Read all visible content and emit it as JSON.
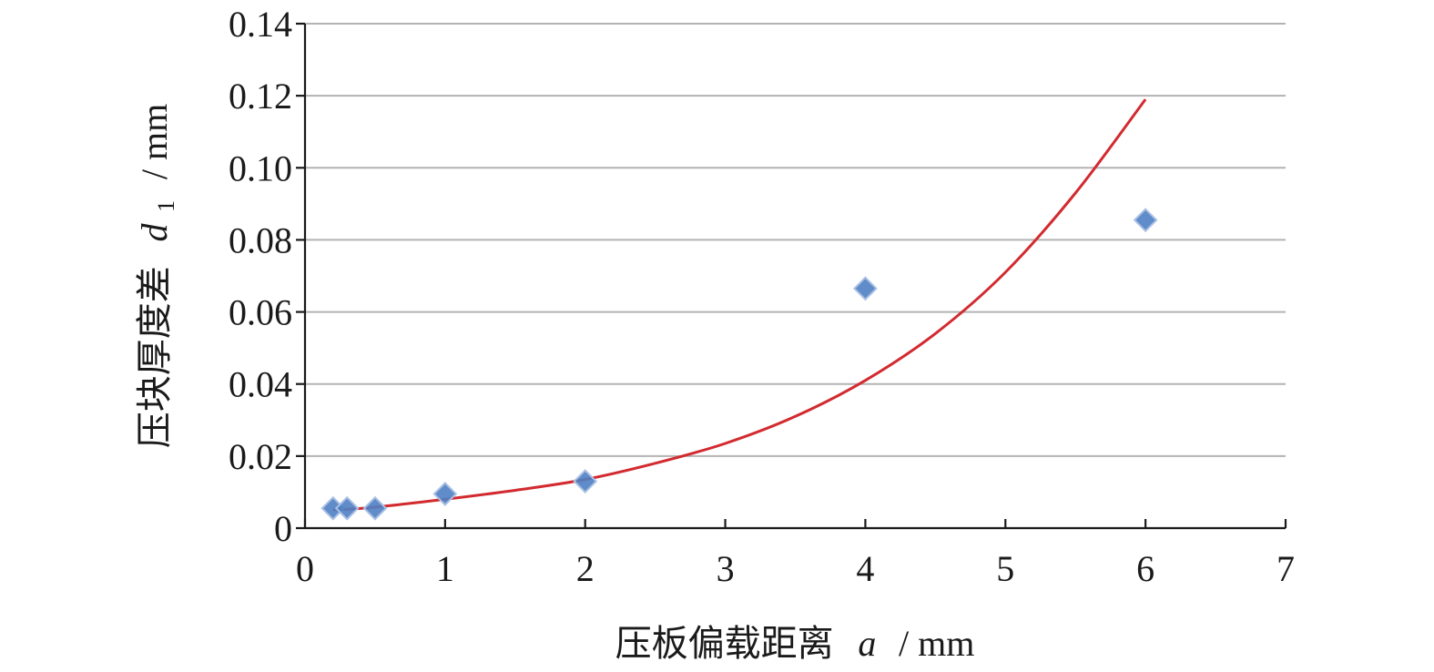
{
  "chart_data": {
    "type": "scatter",
    "title": "",
    "xlabel": {
      "text": "压板偏载距离",
      "symbol": "a",
      "unit": "/ mm"
    },
    "ylabel": {
      "text": "压块厚度差",
      "symbol": "d",
      "subscript": "1",
      "unit": "/ mm"
    },
    "xlim": [
      0,
      7
    ],
    "ylim": [
      0,
      0.14
    ],
    "x_ticks": [
      0,
      1,
      2,
      3,
      4,
      5,
      6,
      7
    ],
    "x_tick_labels": [
      "0",
      "1",
      "2",
      "3",
      "4",
      "5",
      "6",
      "7"
    ],
    "y_ticks": [
      0,
      0.02,
      0.04,
      0.06,
      0.08,
      0.1,
      0.12,
      0.14
    ],
    "y_tick_labels": [
      "0",
      "0.02",
      "0.04",
      "0.06",
      "0.08",
      "0.10",
      "0.12",
      "0.14"
    ],
    "grid": true,
    "legend": "none",
    "series": [
      {
        "kind": "scatter",
        "marker": "diamond",
        "color": "#4f7fc3",
        "x": [
          0.2,
          0.3,
          0.5,
          1.0,
          2.0,
          4.0,
          6.0
        ],
        "y": [
          0.0055,
          0.0055,
          0.0055,
          0.0095,
          0.013,
          0.0665,
          0.0855
        ]
      },
      {
        "kind": "line",
        "color": "#d22a2f",
        "x": [
          0.2,
          0.5,
          1.0,
          1.5,
          2.0,
          2.5,
          3.0,
          3.5,
          4.0,
          4.5,
          5.0,
          5.5,
          6.0
        ],
        "y": [
          0.005,
          0.0058,
          0.008,
          0.0105,
          0.0135,
          0.018,
          0.0235,
          0.031,
          0.041,
          0.054,
          0.071,
          0.093,
          0.119
        ]
      }
    ]
  }
}
